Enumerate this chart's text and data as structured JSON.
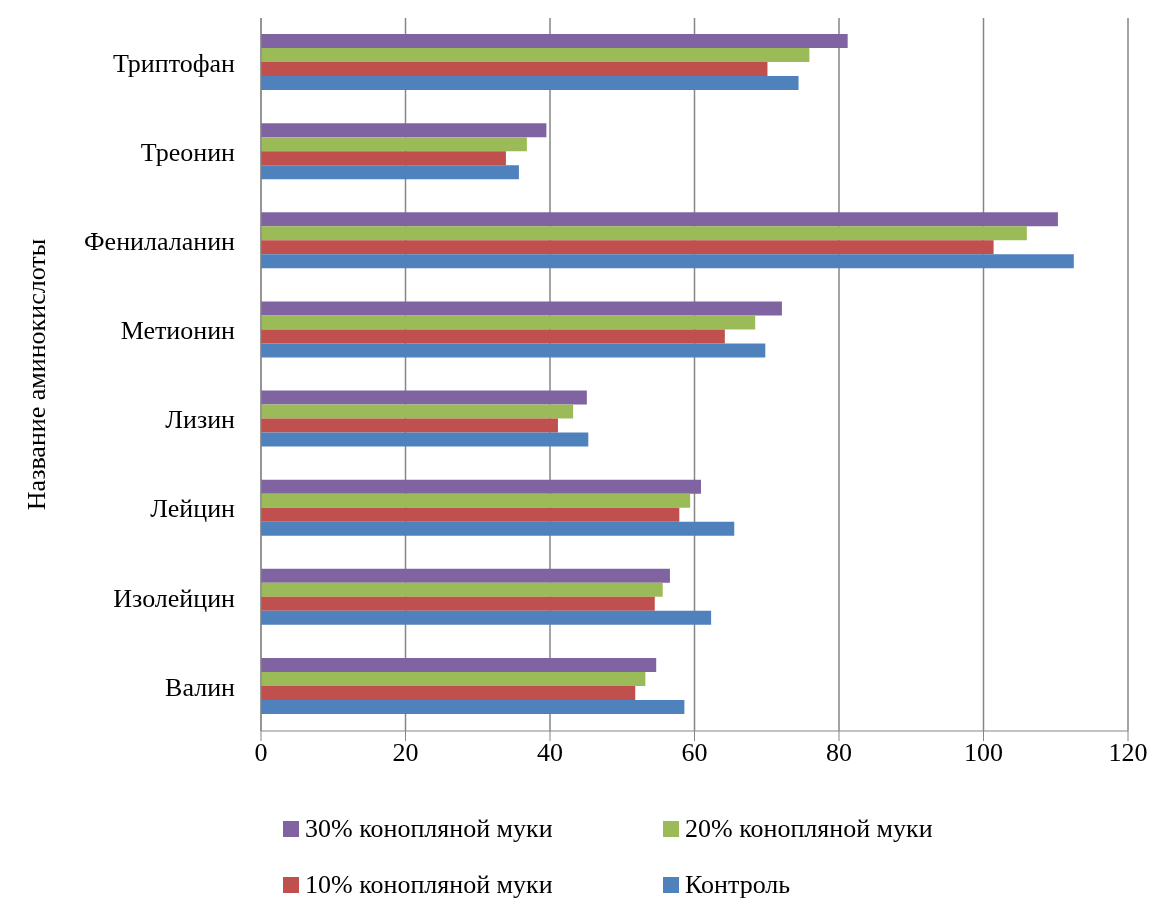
{
  "chart_data": {
    "type": "bar",
    "orientation": "horizontal",
    "ylabel": "Название аминокислоты",
    "categories": [
      "Триптофан",
      "Треонин",
      "Фенилаланин",
      "Метионин",
      "Лизин",
      "Лейцин",
      "Изолейцин",
      "Валин"
    ],
    "series": [
      {
        "name": "30% конопляной муки",
        "color": "#8064a2",
        "values": [
          81.2,
          39.5,
          110.3,
          72.1,
          45.1,
          60.9,
          56.6,
          54.7
        ]
      },
      {
        "name": "20% конопляной муки",
        "color": "#9bbb59",
        "values": [
          75.9,
          36.8,
          106.0,
          68.4,
          43.2,
          59.4,
          55.6,
          53.2
        ]
      },
      {
        "name": "10% конопляной муки",
        "color": "#c0504d",
        "values": [
          70.1,
          33.9,
          101.4,
          64.2,
          41.1,
          57.9,
          54.5,
          51.8
        ]
      },
      {
        "name": "Контроль",
        "color": "#4f81bd",
        "values": [
          74.4,
          35.7,
          112.5,
          69.8,
          45.3,
          65.5,
          62.3,
          58.6
        ]
      }
    ],
    "xlim": [
      0,
      120
    ],
    "xticks": [
      0,
      20,
      40,
      60,
      80,
      100,
      120
    ],
    "grid": "x",
    "legend": "bottom"
  }
}
